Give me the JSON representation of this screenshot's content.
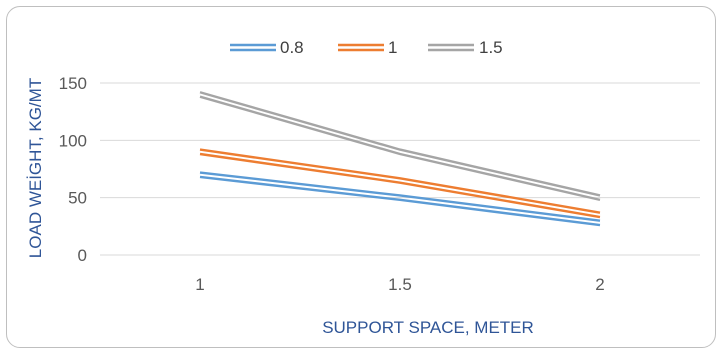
{
  "chart_data": {
    "type": "line",
    "title": "",
    "xlabel": "SUPPORT SPACE, METER",
    "ylabel": "LOAD WEİGHT, KG/MT",
    "categories": [
      "1",
      "1.5",
      "2"
    ],
    "x": [
      1,
      1.5,
      2
    ],
    "ylim": [
      0,
      150
    ],
    "yticks": [
      "0",
      "50",
      "100",
      "150"
    ],
    "grid": true,
    "legend_position": "top",
    "series": [
      {
        "name": "0.8",
        "color": "#5b9bd5",
        "values": [
          70,
          50,
          28
        ]
      },
      {
        "name": "1",
        "color": "#ed7d31",
        "values": [
          90,
          65,
          35
        ]
      },
      {
        "name": "1.5",
        "color": "#a5a5a5",
        "values": [
          140,
          90,
          50
        ]
      }
    ]
  }
}
